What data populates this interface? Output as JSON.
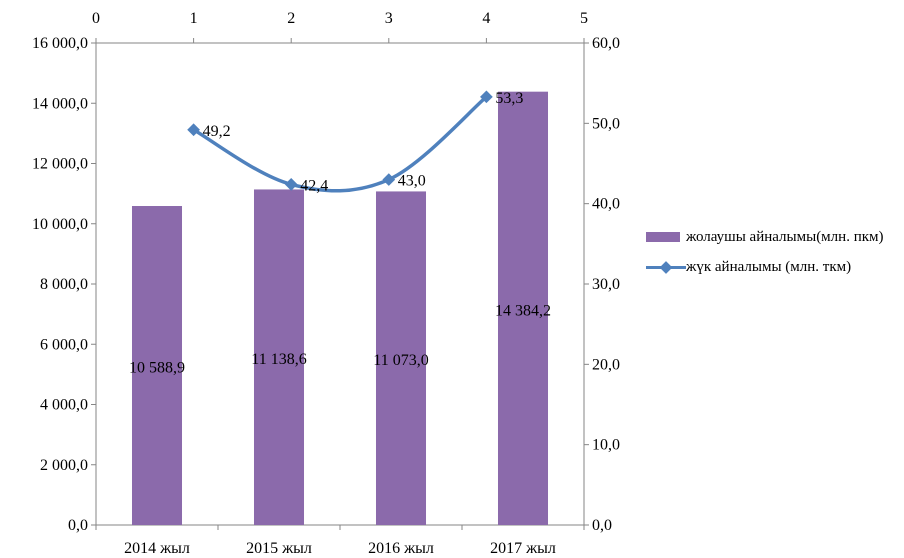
{
  "chart_data": {
    "type": "bar+line",
    "title": "",
    "categories": [
      "2014 жыл",
      "2015 жыл",
      "2016 жыл",
      "2017 жыл"
    ],
    "series": [
      {
        "name": "жолаушы айналымы(млн. пкм)",
        "type": "bar",
        "axis": "left",
        "color": "#8b6aab",
        "values": [
          10588.9,
          11138.6,
          11073.0,
          14384.2
        ],
        "labels": [
          "10 588,9",
          "11 138,6",
          "11 073,0",
          "14 384,2"
        ]
      },
      {
        "name": "жүк айналымы (млн. ткм)",
        "type": "line",
        "axis": "right",
        "color": "#4f81bd",
        "values": [
          49.2,
          42.4,
          43.0,
          53.3
        ],
        "labels": [
          "49,2",
          "42,4",
          "43,0",
          "53,3"
        ]
      }
    ],
    "y_left": {
      "min": 0,
      "max": 16000,
      "ticks": [
        "0,0",
        "2 000,0",
        "4 000,0",
        "6 000,0",
        "8 000,0",
        "10 000,0",
        "12 000,0",
        "14 000,0",
        "16 000,0"
      ]
    },
    "y_right": {
      "min": 0,
      "max": 60,
      "ticks": [
        "0,0",
        "10,0",
        "20,0",
        "30,0",
        "40,0",
        "50,0",
        "60,0"
      ]
    },
    "x_secondary": {
      "min": 0,
      "max": 5,
      "ticks": [
        "0",
        "1",
        "2",
        "3",
        "4",
        "5"
      ]
    },
    "grid": false,
    "legend_position": "right"
  }
}
